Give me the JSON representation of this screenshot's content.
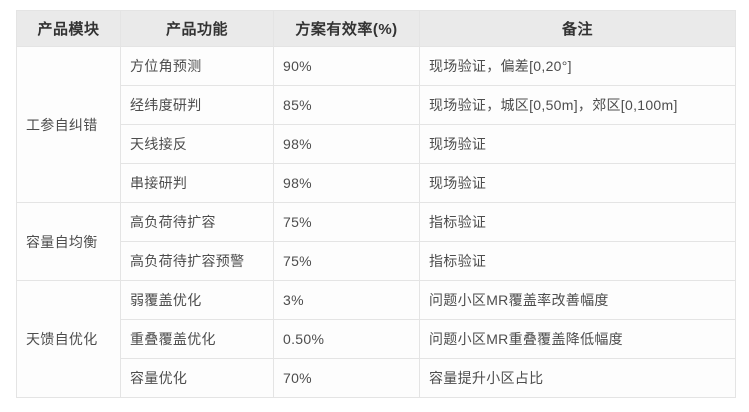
{
  "table": {
    "headers": [
      "产品模块",
      "产品功能",
      "方案有效率(%)",
      "备注"
    ],
    "groups": [
      {
        "module": "工参自纠错",
        "rows": [
          {
            "function": "方位角预测",
            "rate": "90%",
            "note": "现场验证，偏差[0,20°]"
          },
          {
            "function": "经纬度研判",
            "rate": "85%",
            "note": "现场验证，城区[0,50m]，郊区[0,100m]"
          },
          {
            "function": "天线接反",
            "rate": "98%",
            "note": "现场验证"
          },
          {
            "function": "串接研判",
            "rate": "98%",
            "note": "现场验证"
          }
        ]
      },
      {
        "module": "容量自均衡",
        "rows": [
          {
            "function": "高负荷待扩容",
            "rate": "75%",
            "note": "指标验证"
          },
          {
            "function": "高负荷待扩容预警",
            "rate": "75%",
            "note": "指标验证"
          }
        ]
      },
      {
        "module": "天馈自优化",
        "rows": [
          {
            "function": "弱覆盖优化",
            "rate": "3%",
            "note": "问题小区MR覆盖率改善幅度"
          },
          {
            "function": "重叠覆盖优化",
            "rate": "0.50%",
            "note": "问题小区MR重叠覆盖降低幅度"
          },
          {
            "function": "容量优化",
            "rate": "70%",
            "note": "容量提升小区占比"
          }
        ]
      }
    ],
    "colors": {
      "header_bg": "#eaeaea",
      "header_text": "#333333",
      "body_text": "#4d4d4d",
      "cell_bg": "#fdfdfd",
      "border": "#e4e4e4"
    }
  }
}
